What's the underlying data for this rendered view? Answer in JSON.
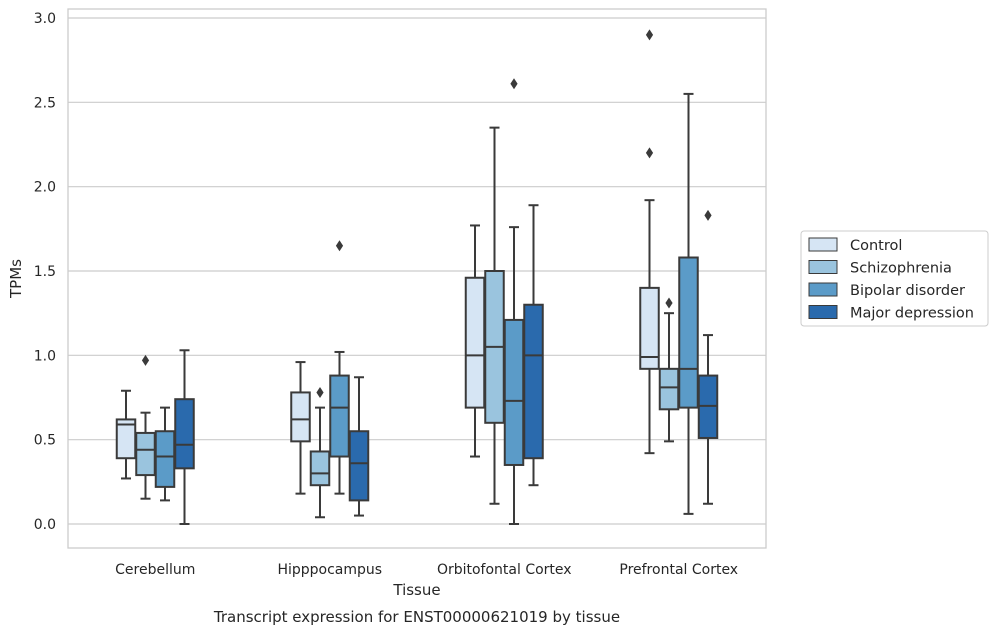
{
  "chart_data": {
    "type": "box",
    "title": "",
    "caption": "Transcript expression for ENST00000621019 by tissue",
    "xlabel": "Tissue",
    "ylabel": "TPMs",
    "ylim": [
      -0.14,
      3.05
    ],
    "yticks": [
      0.0,
      0.5,
      1.0,
      1.5,
      2.0,
      2.5,
      3.0
    ],
    "ytick_labels": [
      "0.0",
      "0.5",
      "1.0",
      "1.5",
      "2.0",
      "2.5",
      "3.0"
    ],
    "grid": "horizontal",
    "legend": "right",
    "categories": [
      "Cerebellum",
      "Hipppocampus",
      "Orbitofontal Cortex",
      "Prefrontal Cortex"
    ],
    "series": [
      {
        "name": "Control",
        "color": "#d6e5f4",
        "boxes": [
          {
            "whislo": 0.27,
            "q1": 0.39,
            "med": 0.59,
            "q3": 0.62,
            "whishi": 0.79,
            "fliers": []
          },
          {
            "whislo": 0.18,
            "q1": 0.49,
            "med": 0.62,
            "q3": 0.78,
            "whishi": 0.96,
            "fliers": []
          },
          {
            "whislo": 0.4,
            "q1": 0.69,
            "med": 1.0,
            "q3": 1.46,
            "whishi": 1.77,
            "fliers": []
          },
          {
            "whislo": 0.42,
            "q1": 0.92,
            "med": 0.99,
            "q3": 1.4,
            "whishi": 1.92,
            "fliers": [
              2.2,
              2.9
            ]
          }
        ]
      },
      {
        "name": "Schizophrenia",
        "color": "#9ac4de",
        "boxes": [
          {
            "whislo": 0.15,
            "q1": 0.29,
            "med": 0.44,
            "q3": 0.54,
            "whishi": 0.66,
            "fliers": [
              0.97
            ]
          },
          {
            "whislo": 0.04,
            "q1": 0.23,
            "med": 0.3,
            "q3": 0.43,
            "whishi": 0.69,
            "fliers": [
              0.78
            ]
          },
          {
            "whislo": 0.12,
            "q1": 0.6,
            "med": 1.05,
            "q3": 1.5,
            "whishi": 2.35,
            "fliers": []
          },
          {
            "whislo": 0.49,
            "q1": 0.68,
            "med": 0.81,
            "q3": 0.92,
            "whishi": 1.25,
            "fliers": [
              1.31
            ]
          }
        ]
      },
      {
        "name": "Bipolar disorder",
        "color": "#5b9bc8",
        "boxes": [
          {
            "whislo": 0.14,
            "q1": 0.22,
            "med": 0.4,
            "q3": 0.55,
            "whishi": 0.69,
            "fliers": []
          },
          {
            "whislo": 0.18,
            "q1": 0.4,
            "med": 0.69,
            "q3": 0.88,
            "whishi": 1.02,
            "fliers": [
              1.65
            ]
          },
          {
            "whislo": 0.0,
            "q1": 0.35,
            "med": 0.73,
            "q3": 1.21,
            "whishi": 1.76,
            "fliers": [
              2.61
            ]
          },
          {
            "whislo": 0.06,
            "q1": 0.69,
            "med": 0.92,
            "q3": 1.58,
            "whishi": 2.55,
            "fliers": []
          }
        ]
      },
      {
        "name": "Major depression",
        "color": "#2a6aad",
        "boxes": [
          {
            "whislo": 0.0,
            "q1": 0.33,
            "med": 0.47,
            "q3": 0.74,
            "whishi": 1.03,
            "fliers": []
          },
          {
            "whislo": 0.05,
            "q1": 0.14,
            "med": 0.36,
            "q3": 0.55,
            "whishi": 0.87,
            "fliers": []
          },
          {
            "whislo": 0.23,
            "q1": 0.39,
            "med": 1.0,
            "q3": 1.3,
            "whishi": 1.89,
            "fliers": []
          },
          {
            "whislo": 0.12,
            "q1": 0.51,
            "med": 0.7,
            "q3": 0.88,
            "whishi": 1.12,
            "fliers": [
              1.83
            ]
          }
        ]
      }
    ],
    "colors": {
      "grid": "#cccccc",
      "frame": "#cccccc",
      "stroke": "#3a3a3a",
      "text": "#262626"
    }
  }
}
